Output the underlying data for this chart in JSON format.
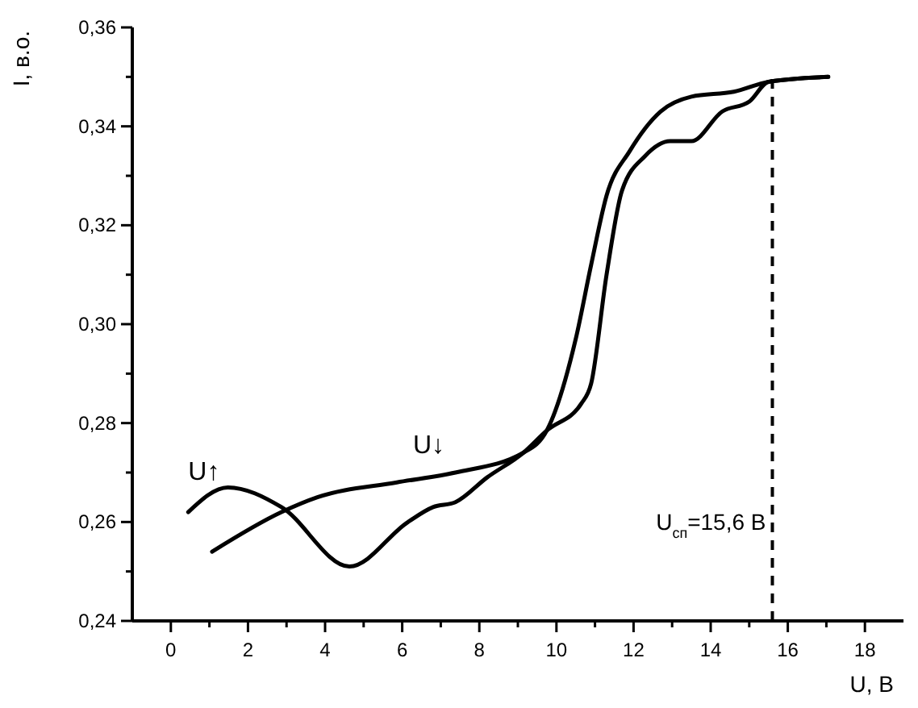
{
  "chart_data": {
    "type": "line",
    "xlabel": "U, В",
    "ylabel": "I, в.о.",
    "xlim": [
      -1,
      19
    ],
    "ylim": [
      0.24,
      0.36
    ],
    "xticks": [
      0,
      {
        "value": 1,
        "label": null
      },
      2,
      {
        "value": 3,
        "label": null
      },
      4,
      {
        "value": 5,
        "label": null
      },
      6,
      {
        "value": 7,
        "label": null
      },
      8,
      {
        "value": 9,
        "label": null
      },
      10,
      {
        "value": 11,
        "label": null
      },
      12,
      {
        "value": 13,
        "label": null
      },
      14,
      {
        "value": 15,
        "label": null
      },
      16,
      {
        "value": 17,
        "label": null
      },
      18
    ],
    "yticks": [
      {
        "value": 0.24,
        "label": "0,24"
      },
      {
        "value": 0.25,
        "label": null
      },
      {
        "value": 0.26,
        "label": "0,26"
      },
      {
        "value": 0.27,
        "label": null
      },
      {
        "value": 0.28,
        "label": "0,28"
      },
      {
        "value": 0.29,
        "label": null
      },
      {
        "value": 0.3,
        "label": "0,30"
      },
      {
        "value": 0.31,
        "label": null
      },
      {
        "value": 0.32,
        "label": "0,32"
      },
      {
        "value": 0.33,
        "label": null
      },
      {
        "value": 0.34,
        "label": "0,34"
      },
      {
        "value": 0.35,
        "label": null
      },
      {
        "value": 0.36,
        "label": "0,36"
      }
    ],
    "grid": false,
    "marker": "none",
    "line_style": "solid",
    "series": [
      {
        "name": "U↑",
        "color": "#000000",
        "x": [
          0.45,
          1.48,
          2.87,
          4.63,
          6.15,
          6.8,
          7.38,
          8.2,
          9.14,
          9.75,
          10.65,
          10.9,
          11.3,
          11.7,
          12.3,
          12.95,
          13.5,
          14.3,
          15.0,
          15.5,
          17.05
        ],
        "values": [
          0.262,
          0.267,
          0.263,
          0.251,
          0.26,
          0.263,
          0.264,
          0.269,
          0.274,
          0.2785,
          0.284,
          0.288,
          0.31,
          0.327,
          0.334,
          0.337,
          0.337,
          0.343,
          0.345,
          0.349,
          0.35
        ]
      },
      {
        "name": "U↓",
        "color": "#000000",
        "x": [
          1.07,
          2.87,
          3.8,
          5.86,
          7.38,
          9.14,
          9.75,
          10.5,
          10.9,
          11.3,
          11.9,
          12.7,
          13.5,
          14.6,
          15.5,
          17.05
        ],
        "values": [
          0.254,
          0.262,
          0.265,
          0.268,
          0.27,
          0.274,
          0.2785,
          0.297,
          0.312,
          0.326,
          0.335,
          0.343,
          0.346,
          0.347,
          0.349,
          0.35
        ]
      }
    ],
    "ref_lines": [
      {
        "axis": "x",
        "value": 15.6,
        "label": "U$_{сп}$=15,6 В",
        "color": "#000000",
        "line_style": "dashed"
      }
    ]
  }
}
